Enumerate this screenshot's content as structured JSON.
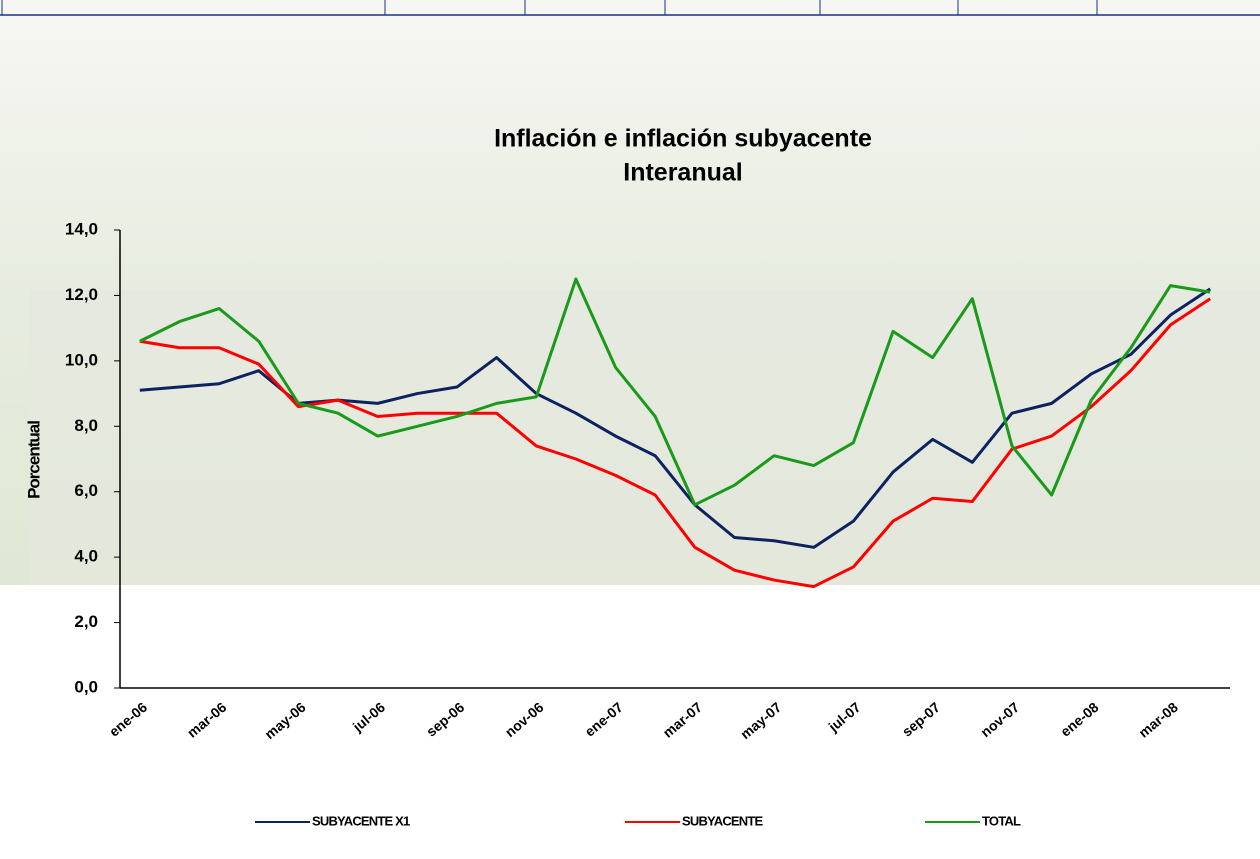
{
  "chart_data": {
    "type": "line",
    "title": "Inflación e inflación subyacente",
    "subtitle": "Interanual",
    "y_label": "Porcentual",
    "categories": [
      "ene-06",
      null,
      "mar-06",
      null,
      "may-06",
      null,
      "jul-06",
      null,
      "sep-06",
      null,
      "nov-06",
      null,
      "ene-07",
      null,
      "mar-07",
      null,
      "may-07",
      null,
      "jul-07",
      null,
      "sep-07",
      null,
      "nov-07",
      null,
      "ene-08",
      null,
      "mar-08",
      null
    ],
    "series": [
      {
        "name": "SUBYACENTE X1",
        "color": "#0d2260",
        "values": [
          9.1,
          9.2,
          9.3,
          9.7,
          8.7,
          8.8,
          8.7,
          9.0,
          9.2,
          10.1,
          9.0,
          8.4,
          7.7,
          7.1,
          5.6,
          4.6,
          4.5,
          4.3,
          5.1,
          6.6,
          7.6,
          6.9,
          8.4,
          8.7,
          9.6,
          10.2,
          11.4,
          12.2
        ]
      },
      {
        "name": "SUBYACENTE",
        "color": "#ff0000",
        "values": [
          10.6,
          10.4,
          10.4,
          9.9,
          8.6,
          8.8,
          8.3,
          8.4,
          8.4,
          8.4,
          7.4,
          7.0,
          6.5,
          5.9,
          4.3,
          3.6,
          3.3,
          3.1,
          3.7,
          5.1,
          5.8,
          5.7,
          7.3,
          7.7,
          8.6,
          9.7,
          11.1,
          11.9
        ]
      },
      {
        "name": "TOTAL",
        "color": "#1a9a1a",
        "values": [
          10.6,
          11.2,
          11.6,
          10.6,
          8.7,
          8.4,
          7.7,
          8.0,
          8.3,
          8.7,
          8.9,
          12.5,
          9.8,
          8.3,
          5.6,
          6.2,
          7.1,
          6.8,
          7.5,
          10.9,
          10.1,
          11.9,
          7.4,
          5.9,
          8.8,
          10.4,
          12.3,
          12.1
        ]
      }
    ],
    "ylim": [
      0,
      14
    ],
    "yticks": [
      {
        "value": 0,
        "label": "0,0"
      },
      {
        "value": 2,
        "label": "2,0"
      },
      {
        "value": 4,
        "label": "4,0"
      },
      {
        "value": 6,
        "label": "6,0"
      },
      {
        "value": 8,
        "label": "8,0"
      },
      {
        "value": 10,
        "label": "10,0"
      },
      {
        "value": 12,
        "label": "12,0"
      },
      {
        "value": 14,
        "label": "14,0"
      }
    ],
    "grid": false,
    "legend": "bottom"
  }
}
